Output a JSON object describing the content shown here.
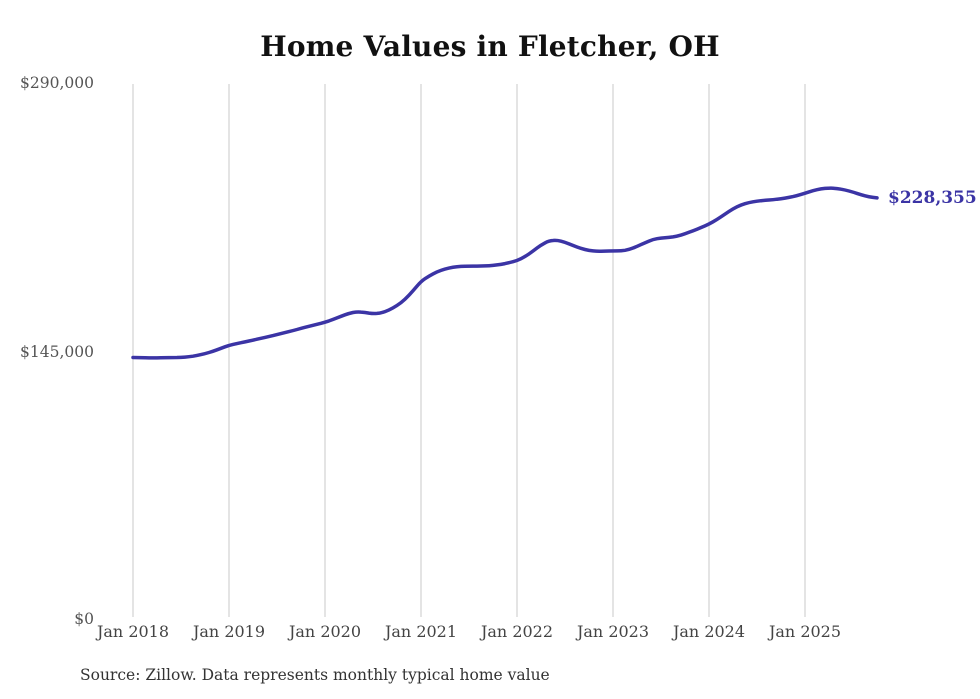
{
  "chart_data": {
    "type": "line",
    "title": "Home Values in Fletcher, OH",
    "source_note": "Source: Zillow. Data represents monthly typical home value",
    "end_label": "$228,355",
    "end_value": 228355,
    "y_tick_labels": [
      "$0",
      "$145,000",
      "$290,000"
    ],
    "y_ticks": [
      0,
      145000,
      290000
    ],
    "ylim": [
      0,
      290000
    ],
    "x_tick_labels": [
      "Jan 2018",
      "Jan 2019",
      "Jan 2020",
      "Jan 2021",
      "Jan 2022",
      "Jan 2023",
      "Jan 2024",
      "Jan 2025"
    ],
    "grid": "vertical-only",
    "legend_position": "none",
    "line_color": "#3b34a5",
    "grid_color": "#c9c9c9",
    "series": [
      {
        "name": "Monthly typical home value",
        "start_month": "2018-01",
        "frequency": "monthly",
        "values": [
          142000,
          141900,
          141800,
          141800,
          141900,
          142000,
          142100,
          142400,
          143100,
          144100,
          145400,
          147000,
          148600,
          149600,
          150500,
          151400,
          152400,
          153400,
          154400,
          155500,
          156600,
          157800,
          158900,
          160000,
          161100,
          162600,
          164300,
          165900,
          166800,
          166400,
          165700,
          166100,
          167600,
          170100,
          173400,
          178100,
          183200,
          186100,
          188400,
          189900,
          190900,
          191300,
          191400,
          191500,
          191600,
          191800,
          192400,
          193300,
          194400,
          196600,
          199600,
          202900,
          205200,
          205500,
          204400,
          202600,
          201000,
          199900,
          199500,
          199600,
          199700,
          199700,
          200400,
          202100,
          204100,
          205900,
          206700,
          207000,
          207600,
          208900,
          210600,
          212300,
          214200,
          216700,
          219600,
          222500,
          224600,
          225900,
          226600,
          227100,
          227400,
          227900,
          228600,
          229600,
          230900,
          232300,
          233300,
          233700,
          233500,
          232700,
          231500,
          230100,
          228900,
          228355
        ]
      }
    ]
  }
}
